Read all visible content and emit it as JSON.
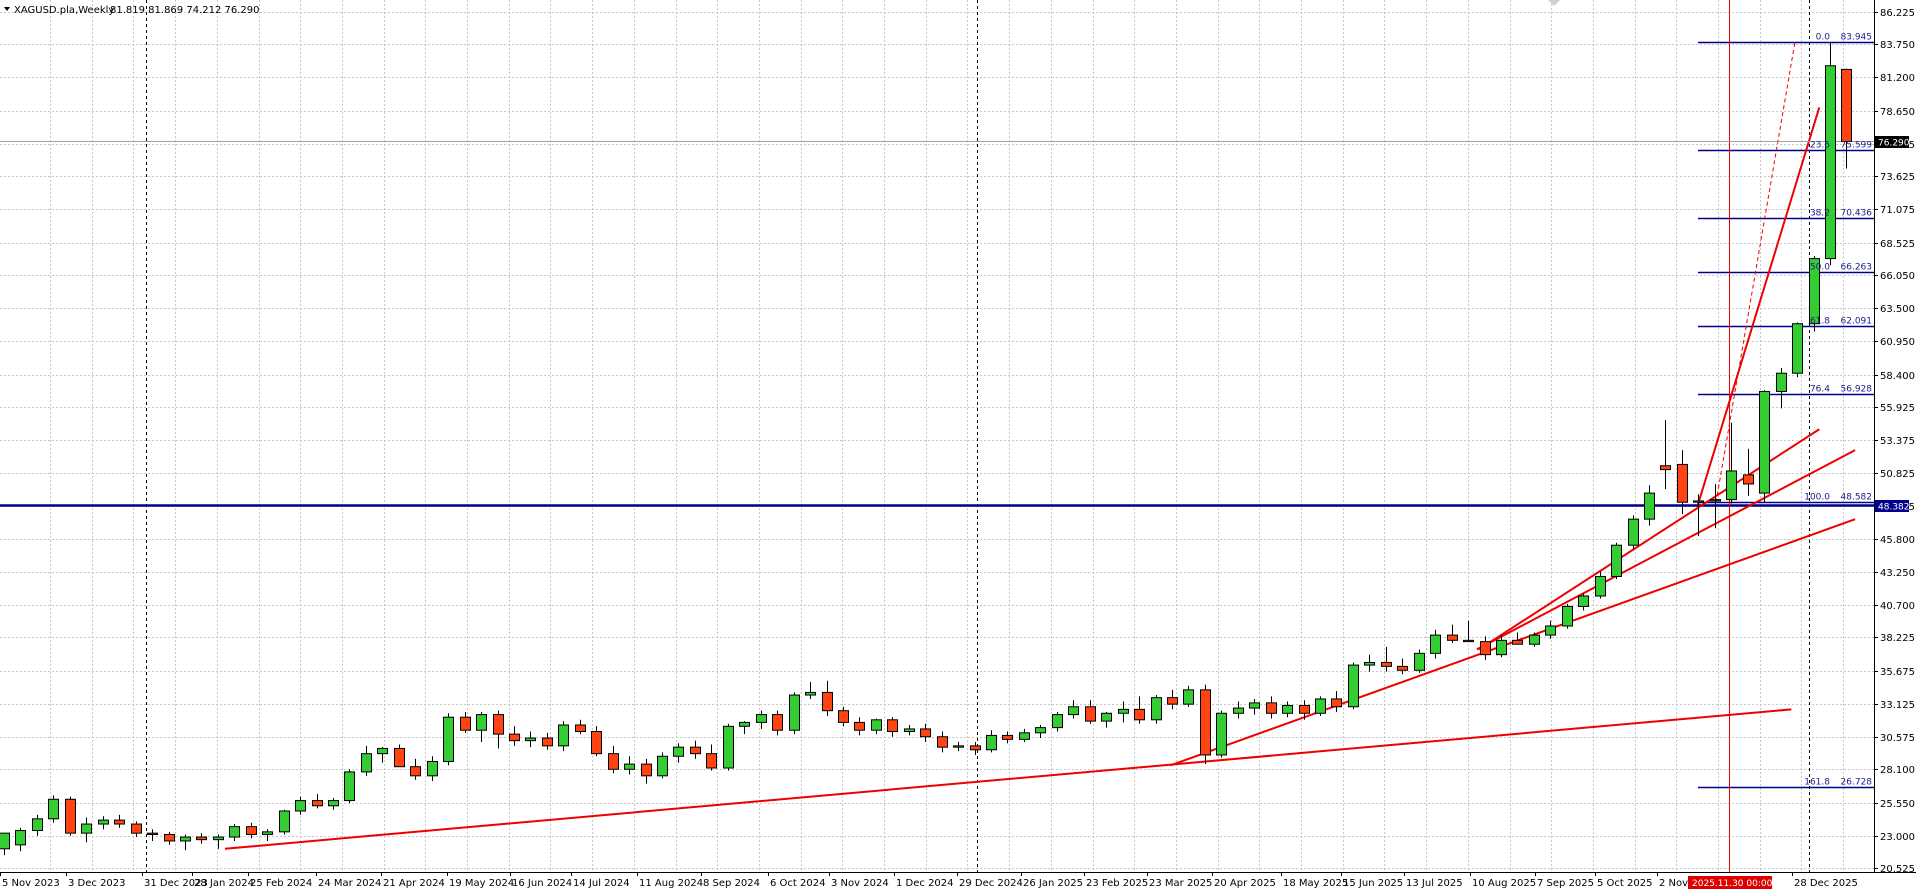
{
  "header": {
    "symbol": "XAGUSD.pla,Weekly",
    "ohlc": "81.819 81.869 74.212 76.290"
  },
  "colors": {
    "bull": "#33cc33",
    "bear": "#ff4411",
    "candle_outline": "#000000",
    "grid": "#c8c8c8",
    "trend": "#ee0000",
    "fibo": "#00008b",
    "support": "#00008b"
  },
  "time_axis": {
    "labels": [
      "5 Nov 2023",
      "3 Dec 2023",
      "31 Dec 2023",
      "28 Jan 2024",
      "25 Feb 2024",
      "24 Mar 2024",
      "21 Apr 2024",
      "19 May 2024",
      "16 Jun 2024",
      "14 Jul 2024",
      "11 Aug 2024",
      "8 Sep 2024",
      "6 Oct 2024",
      "3 Nov 2024",
      "1 Dec 2024",
      "29 Dec 2024",
      "26 Jan 2025",
      "23 Feb 2025",
      "23 Mar 2025",
      "20 Apr 2025",
      "18 May 2025",
      "15 Jun 2025",
      "13 Jul 2025",
      "10 Aug 2025",
      "7 Sep 2025",
      "5 Oct 2025",
      "2 Nov",
      "28 Dec 2025"
    ],
    "cursor_label": "2025.11.30 00:00"
  },
  "price_axis": {
    "ticks": [
      "86.225",
      "83.750",
      "81.200",
      "78.650",
      "76.125",
      "73.625",
      "71.075",
      "68.525",
      "66.050",
      "63.500",
      "60.950",
      "58.400",
      "55.925",
      "53.375",
      "50.825",
      "48.275",
      "45.800",
      "43.250",
      "40.700",
      "38.225",
      "35.675",
      "33.125",
      "30.575",
      "28.100",
      "25.550",
      "23.000",
      "20.525"
    ],
    "current_price_tag": "76.290",
    "support_tag": "48.382"
  },
  "fibonacci": [
    {
      "ratio": "0.0",
      "price": "83.945"
    },
    {
      "ratio": "23.6",
      "price": "75.599"
    },
    {
      "ratio": "38.2",
      "price": "70.436"
    },
    {
      "ratio": "50.0",
      "price": "66.263"
    },
    {
      "ratio": "61.8",
      "price": "62.091"
    },
    {
      "ratio": "76.4",
      "price": "56.928"
    },
    {
      "ratio": "100.0",
      "price": "48.582"
    },
    {
      "ratio": "161.8",
      "price": "26.728"
    }
  ],
  "chart_data": {
    "type": "candlestick",
    "timeframe": "Weekly",
    "ylim": [
      20.525,
      86.225
    ],
    "support_level": 48.382,
    "current_price": 76.29,
    "ohlc": [
      [
        22.0,
        23.2,
        21.5,
        23.2
      ],
      [
        22.3,
        23.6,
        21.8,
        23.4
      ],
      [
        23.4,
        24.6,
        23.0,
        24.3
      ],
      [
        24.3,
        26.1,
        24.0,
        25.8
      ],
      [
        25.8,
        26.0,
        23.0,
        23.2
      ],
      [
        23.2,
        24.4,
        22.5,
        23.9
      ],
      [
        23.9,
        24.5,
        23.5,
        24.2
      ],
      [
        24.2,
        24.6,
        23.6,
        23.9
      ],
      [
        23.9,
        24.1,
        22.9,
        23.2
      ],
      [
        23.2,
        23.5,
        22.6,
        23.1
      ],
      [
        23.1,
        23.3,
        22.3,
        22.6
      ],
      [
        22.6,
        23.1,
        21.9,
        22.9
      ],
      [
        22.9,
        23.2,
        22.4,
        22.7
      ],
      [
        22.7,
        23.1,
        22.0,
        22.9
      ],
      [
        22.9,
        23.9,
        22.6,
        23.7
      ],
      [
        23.7,
        24.0,
        22.8,
        23.1
      ],
      [
        23.1,
        23.5,
        22.6,
        23.3
      ],
      [
        23.3,
        25.0,
        23.1,
        24.9
      ],
      [
        24.9,
        26.0,
        24.6,
        25.7
      ],
      [
        25.7,
        26.2,
        25.1,
        25.3
      ],
      [
        25.3,
        25.9,
        25.0,
        25.7
      ],
      [
        25.7,
        28.1,
        25.5,
        27.9
      ],
      [
        27.9,
        29.9,
        27.6,
        29.3
      ],
      [
        29.3,
        29.8,
        28.6,
        29.7
      ],
      [
        29.7,
        30.0,
        28.3,
        28.3
      ],
      [
        28.3,
        28.9,
        27.3,
        27.6
      ],
      [
        27.6,
        29.1,
        27.2,
        28.7
      ],
      [
        28.7,
        32.4,
        28.4,
        32.1
      ],
      [
        32.1,
        32.5,
        30.9,
        31.1
      ],
      [
        31.1,
        32.5,
        30.2,
        32.3
      ],
      [
        32.3,
        32.6,
        29.7,
        30.8
      ],
      [
        30.8,
        31.4,
        29.9,
        30.3
      ],
      [
        30.3,
        31.0,
        29.8,
        30.5
      ],
      [
        30.5,
        30.9,
        29.6,
        29.9
      ],
      [
        29.9,
        31.8,
        29.5,
        31.5
      ],
      [
        31.5,
        31.9,
        30.8,
        31.0
      ],
      [
        31.0,
        31.4,
        29.1,
        29.3
      ],
      [
        29.3,
        29.9,
        27.8,
        28.1
      ],
      [
        28.1,
        29.1,
        27.7,
        28.5
      ],
      [
        28.5,
        28.9,
        27.0,
        27.6
      ],
      [
        27.6,
        29.4,
        27.4,
        29.1
      ],
      [
        29.1,
        30.1,
        28.6,
        29.8
      ],
      [
        29.8,
        30.3,
        28.9,
        29.3
      ],
      [
        29.3,
        30.0,
        28.0,
        28.2
      ],
      [
        28.2,
        31.6,
        28.0,
        31.4
      ],
      [
        31.4,
        31.8,
        30.8,
        31.7
      ],
      [
        31.7,
        32.6,
        31.2,
        32.3
      ],
      [
        32.3,
        32.6,
        30.7,
        31.1
      ],
      [
        31.1,
        34.0,
        30.8,
        33.8
      ],
      [
        33.8,
        34.8,
        33.5,
        34.0
      ],
      [
        34.0,
        34.9,
        32.2,
        32.6
      ],
      [
        32.6,
        32.9,
        31.4,
        31.7
      ],
      [
        31.7,
        32.1,
        30.7,
        31.1
      ],
      [
        31.1,
        32.0,
        30.8,
        31.9
      ],
      [
        31.9,
        32.1,
        30.6,
        31.0
      ],
      [
        31.0,
        31.5,
        30.7,
        31.2
      ],
      [
        31.2,
        31.6,
        30.2,
        30.6
      ],
      [
        30.6,
        31.0,
        29.4,
        29.8
      ],
      [
        29.8,
        30.2,
        29.5,
        29.9
      ],
      [
        29.9,
        30.2,
        29.2,
        29.6
      ],
      [
        29.6,
        31.1,
        29.4,
        30.7
      ],
      [
        30.7,
        31.0,
        30.1,
        30.4
      ],
      [
        30.4,
        31.2,
        30.2,
        30.9
      ],
      [
        30.9,
        31.5,
        30.5,
        31.3
      ],
      [
        31.3,
        32.5,
        31.0,
        32.3
      ],
      [
        32.3,
        33.4,
        32.0,
        32.9
      ],
      [
        32.9,
        33.4,
        31.6,
        31.8
      ],
      [
        31.8,
        32.5,
        31.3,
        32.4
      ],
      [
        32.4,
        33.3,
        31.7,
        32.7
      ],
      [
        32.7,
        33.7,
        31.6,
        31.9
      ],
      [
        31.9,
        33.8,
        31.6,
        33.6
      ],
      [
        33.6,
        34.2,
        32.7,
        33.1
      ],
      [
        33.1,
        34.5,
        32.9,
        34.2
      ],
      [
        34.2,
        34.6,
        28.5,
        29.2
      ],
      [
        29.2,
        32.6,
        29.0,
        32.4
      ],
      [
        32.4,
        33.3,
        32.0,
        32.8
      ],
      [
        32.8,
        33.5,
        32.3,
        33.2
      ],
      [
        33.2,
        33.7,
        32.0,
        32.4
      ],
      [
        32.4,
        33.3,
        32.1,
        33.0
      ],
      [
        33.0,
        33.4,
        31.9,
        32.4
      ],
      [
        32.4,
        33.7,
        32.2,
        33.5
      ],
      [
        33.5,
        34.1,
        32.5,
        32.9
      ],
      [
        32.9,
        36.3,
        32.7,
        36.1
      ],
      [
        36.1,
        36.9,
        35.6,
        36.3
      ],
      [
        36.3,
        37.5,
        35.6,
        36.0
      ],
      [
        36.0,
        36.6,
        35.4,
        35.7
      ],
      [
        35.7,
        37.3,
        35.5,
        37.0
      ],
      [
        37.0,
        38.8,
        36.6,
        38.4
      ],
      [
        38.4,
        39.2,
        37.8,
        38.0
      ],
      [
        38.0,
        39.5,
        37.9,
        37.9
      ],
      [
        37.9,
        38.3,
        36.5,
        36.9
      ],
      [
        36.9,
        38.4,
        36.7,
        38.0
      ],
      [
        38.0,
        38.6,
        37.7,
        37.7
      ],
      [
        37.7,
        38.6,
        37.5,
        38.4
      ],
      [
        38.4,
        39.5,
        38.1,
        39.1
      ],
      [
        39.1,
        40.8,
        38.9,
        40.6
      ],
      [
        40.6,
        41.6,
        40.3,
        41.4
      ],
      [
        41.4,
        43.3,
        41.2,
        42.9
      ],
      [
        42.9,
        45.5,
        42.7,
        45.3
      ],
      [
        45.3,
        47.6,
        45.0,
        47.3
      ],
      [
        47.3,
        49.9,
        46.8,
        49.3
      ],
      [
        51.4,
        54.9,
        49.6,
        51.1
      ],
      [
        51.5,
        52.6,
        47.7,
        48.6
      ],
      [
        48.6,
        49.2,
        46.0,
        48.7
      ],
      [
        48.7,
        50.0,
        46.6,
        48.8
      ],
      [
        48.8,
        54.7,
        48.5,
        51.0
      ],
      [
        50.7,
        52.7,
        49.1,
        50.0
      ],
      [
        49.3,
        57.2,
        48.6,
        57.1
      ],
      [
        57.1,
        58.9,
        55.8,
        58.5
      ],
      [
        58.5,
        62.4,
        58.2,
        62.3
      ],
      [
        62.3,
        67.5,
        61.7,
        67.3
      ],
      [
        67.3,
        83.9,
        66.8,
        82.1
      ],
      [
        81.819,
        81.869,
        74.212,
        76.29
      ]
    ]
  }
}
